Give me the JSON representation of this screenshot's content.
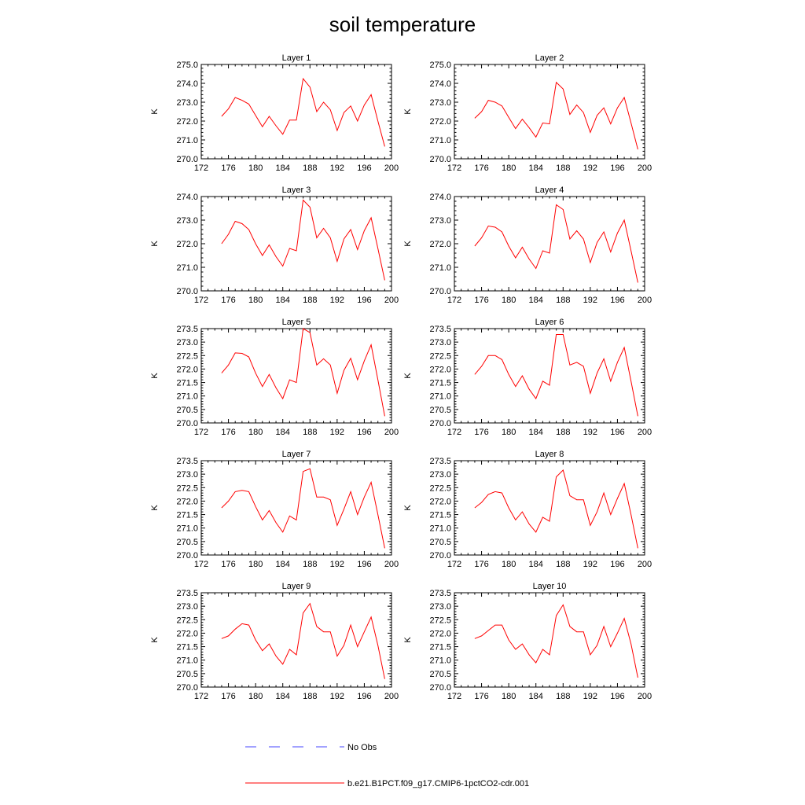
{
  "title": "soil temperature",
  "chart_data": [
    {
      "type": "line",
      "title": "Layer 1",
      "ylabel": "K",
      "xlim": [
        172,
        200
      ],
      "ylim": [
        270.0,
        275.0
      ],
      "xticks": [
        "172",
        "176",
        "180",
        "184",
        "188",
        "192",
        "196",
        "200"
      ],
      "yticks": [
        "270.0",
        "271.0",
        "272.0",
        "273.0",
        "274.0",
        "275.0"
      ],
      "x": [
        175,
        176,
        177,
        178,
        179,
        180,
        181,
        182,
        183,
        184,
        185,
        186,
        187,
        188,
        189,
        190,
        191,
        192,
        193,
        194,
        195,
        196,
        197,
        198,
        199
      ],
      "series": [
        {
          "name": "b.e21.B1PCT.f09_g17.CMIP6-1pctCO2-cdr.001",
          "color": "#ff0000",
          "values": [
            272.25,
            272.65,
            273.25,
            273.1,
            272.9,
            272.3,
            271.7,
            272.25,
            271.75,
            271.3,
            272.05,
            272.05,
            274.25,
            273.8,
            272.5,
            273.0,
            272.6,
            271.5,
            272.45,
            272.8,
            272.0,
            272.85,
            273.4,
            272.0,
            270.65
          ]
        }
      ]
    },
    {
      "type": "line",
      "title": "Layer 2",
      "ylabel": "K",
      "xlim": [
        172,
        200
      ],
      "ylim": [
        270.0,
        275.0
      ],
      "xticks": [
        "172",
        "176",
        "180",
        "184",
        "188",
        "192",
        "196",
        "200"
      ],
      "yticks": [
        "270.0",
        "271.0",
        "272.0",
        "273.0",
        "274.0",
        "275.0"
      ],
      "x": [
        175,
        176,
        177,
        178,
        179,
        180,
        181,
        182,
        183,
        184,
        185,
        186,
        187,
        188,
        189,
        190,
        191,
        192,
        193,
        194,
        195,
        196,
        197,
        198,
        199
      ],
      "series": [
        {
          "name": "b.e21.B1PCT.f09_g17.CMIP6-1pctCO2-cdr.001",
          "color": "#ff0000",
          "values": [
            272.15,
            272.5,
            273.1,
            273.0,
            272.8,
            272.2,
            271.6,
            272.1,
            271.65,
            271.15,
            271.9,
            271.85,
            274.05,
            273.7,
            272.35,
            272.85,
            272.45,
            271.4,
            272.3,
            272.7,
            271.85,
            272.7,
            273.25,
            271.9,
            270.5
          ]
        }
      ]
    },
    {
      "type": "line",
      "title": "Layer 3",
      "ylabel": "K",
      "xlim": [
        172,
        200
      ],
      "ylim": [
        270.0,
        274.0
      ],
      "xticks": [
        "172",
        "176",
        "180",
        "184",
        "188",
        "192",
        "196",
        "200"
      ],
      "yticks": [
        "270.0",
        "271.0",
        "272.0",
        "273.0",
        "274.0"
      ],
      "x": [
        175,
        176,
        177,
        178,
        179,
        180,
        181,
        182,
        183,
        184,
        185,
        186,
        187,
        188,
        189,
        190,
        191,
        192,
        193,
        194,
        195,
        196,
        197,
        198,
        199
      ],
      "series": [
        {
          "name": "b.e21.B1PCT.f09_g17.CMIP6-1pctCO2-cdr.001",
          "color": "#ff0000",
          "values": [
            272.0,
            272.4,
            272.95,
            272.85,
            272.6,
            272.0,
            271.5,
            271.95,
            271.45,
            271.05,
            271.8,
            271.7,
            273.85,
            273.55,
            272.25,
            272.65,
            272.25,
            271.25,
            272.2,
            272.6,
            271.75,
            272.55,
            273.1,
            271.8,
            270.45
          ]
        }
      ]
    },
    {
      "type": "line",
      "title": "Layer 4",
      "ylabel": "K",
      "xlim": [
        172,
        200
      ],
      "ylim": [
        270.0,
        274.0
      ],
      "xticks": [
        "172",
        "176",
        "180",
        "184",
        "188",
        "192",
        "196",
        "200"
      ],
      "yticks": [
        "270.0",
        "271.0",
        "272.0",
        "273.0",
        "274.0"
      ],
      "x": [
        175,
        176,
        177,
        178,
        179,
        180,
        181,
        182,
        183,
        184,
        185,
        186,
        187,
        188,
        189,
        190,
        191,
        192,
        193,
        194,
        195,
        196,
        197,
        198,
        199
      ],
      "series": [
        {
          "name": "b.e21.B1PCT.f09_g17.CMIP6-1pctCO2-cdr.001",
          "color": "#ff0000",
          "values": [
            271.9,
            272.25,
            272.75,
            272.7,
            272.5,
            271.9,
            271.4,
            271.85,
            271.35,
            270.95,
            271.7,
            271.6,
            273.65,
            273.45,
            272.2,
            272.55,
            272.2,
            271.2,
            272.05,
            272.5,
            271.65,
            272.45,
            273.0,
            271.7,
            270.35
          ]
        }
      ]
    },
    {
      "type": "line",
      "title": "Layer 5",
      "ylabel": "K",
      "xlim": [
        172,
        200
      ],
      "ylim": [
        270.0,
        273.5
      ],
      "xticks": [
        "172",
        "176",
        "180",
        "184",
        "188",
        "192",
        "196",
        "200"
      ],
      "yticks": [
        "270.0",
        "270.5",
        "271.0",
        "271.5",
        "272.0",
        "272.5",
        "273.0",
        "273.5"
      ],
      "x": [
        175,
        176,
        177,
        178,
        179,
        180,
        181,
        182,
        183,
        184,
        185,
        186,
        187,
        188,
        189,
        190,
        191,
        192,
        193,
        194,
        195,
        196,
        197,
        198,
        199
      ],
      "series": [
        {
          "name": "b.e21.B1PCT.f09_g17.CMIP6-1pctCO2-cdr.001",
          "color": "#ff0000",
          "values": [
            271.85,
            272.15,
            272.6,
            272.58,
            272.45,
            271.85,
            271.35,
            271.8,
            271.3,
            270.9,
            271.6,
            271.5,
            273.5,
            273.35,
            272.15,
            272.38,
            272.15,
            271.1,
            271.95,
            272.4,
            271.6,
            272.3,
            272.9,
            271.6,
            270.25
          ]
        }
      ]
    },
    {
      "type": "line",
      "title": "Layer 6",
      "ylabel": "K",
      "xlim": [
        172,
        200
      ],
      "ylim": [
        270.0,
        273.5
      ],
      "xticks": [
        "172",
        "176",
        "180",
        "184",
        "188",
        "192",
        "196",
        "200"
      ],
      "yticks": [
        "270.0",
        "270.5",
        "271.0",
        "271.5",
        "272.0",
        "272.5",
        "273.0",
        "273.5"
      ],
      "x": [
        175,
        176,
        177,
        178,
        179,
        180,
        181,
        182,
        183,
        184,
        185,
        186,
        187,
        188,
        189,
        190,
        191,
        192,
        193,
        194,
        195,
        196,
        197,
        198,
        199
      ],
      "series": [
        {
          "name": "b.e21.B1PCT.f09_g17.CMIP6-1pctCO2-cdr.001",
          "color": "#ff0000",
          "values": [
            271.8,
            272.1,
            272.5,
            272.5,
            272.35,
            271.8,
            271.35,
            271.75,
            271.25,
            270.9,
            271.55,
            271.4,
            273.28,
            273.28,
            272.15,
            272.25,
            272.1,
            271.1,
            271.85,
            272.38,
            271.55,
            272.25,
            272.8,
            271.55,
            270.25
          ]
        }
      ]
    },
    {
      "type": "line",
      "title": "Layer 7",
      "ylabel": "K",
      "xlim": [
        172,
        200
      ],
      "ylim": [
        270.0,
        273.5
      ],
      "xticks": [
        "172",
        "176",
        "180",
        "184",
        "188",
        "192",
        "196",
        "200"
      ],
      "yticks": [
        "270.0",
        "270.5",
        "271.0",
        "271.5",
        "272.0",
        "272.5",
        "273.0",
        "273.5"
      ],
      "x": [
        175,
        176,
        177,
        178,
        179,
        180,
        181,
        182,
        183,
        184,
        185,
        186,
        187,
        188,
        189,
        190,
        191,
        192,
        193,
        194,
        195,
        196,
        197,
        198,
        199
      ],
      "series": [
        {
          "name": "b.e21.B1PCT.f09_g17.CMIP6-1pctCO2-cdr.001",
          "color": "#ff0000",
          "values": [
            271.75,
            272.0,
            272.35,
            272.4,
            272.35,
            271.8,
            271.3,
            271.65,
            271.2,
            270.85,
            271.45,
            271.3,
            273.1,
            273.2,
            272.15,
            272.15,
            272.05,
            271.1,
            271.7,
            272.35,
            271.5,
            272.15,
            272.7,
            271.5,
            270.25
          ]
        }
      ]
    },
    {
      "type": "line",
      "title": "Layer 8",
      "ylabel": "K",
      "xlim": [
        172,
        200
      ],
      "ylim": [
        270.0,
        273.5
      ],
      "xticks": [
        "172",
        "176",
        "180",
        "184",
        "188",
        "192",
        "196",
        "200"
      ],
      "yticks": [
        "270.0",
        "270.5",
        "271.0",
        "271.5",
        "272.0",
        "272.5",
        "273.0",
        "273.5"
      ],
      "x": [
        175,
        176,
        177,
        178,
        179,
        180,
        181,
        182,
        183,
        184,
        185,
        186,
        187,
        188,
        189,
        190,
        191,
        192,
        193,
        194,
        195,
        196,
        197,
        198,
        199
      ],
      "series": [
        {
          "name": "b.e21.B1PCT.f09_g17.CMIP6-1pctCO2-cdr.001",
          "color": "#ff0000",
          "values": [
            271.75,
            271.95,
            272.25,
            272.35,
            272.3,
            271.75,
            271.3,
            271.6,
            271.15,
            270.85,
            271.4,
            271.25,
            272.9,
            273.15,
            272.2,
            272.05,
            272.05,
            271.1,
            271.6,
            272.3,
            271.5,
            272.1,
            272.65,
            271.5,
            270.25
          ]
        }
      ]
    },
    {
      "type": "line",
      "title": "Layer 9",
      "ylabel": "K",
      "xlim": [
        172,
        200
      ],
      "ylim": [
        270.0,
        273.5
      ],
      "xticks": [
        "172",
        "176",
        "180",
        "184",
        "188",
        "192",
        "196",
        "200"
      ],
      "yticks": [
        "270.0",
        "270.5",
        "271.0",
        "271.5",
        "272.0",
        "272.5",
        "273.0",
        "273.5"
      ],
      "x": [
        175,
        176,
        177,
        178,
        179,
        180,
        181,
        182,
        183,
        184,
        185,
        186,
        187,
        188,
        189,
        190,
        191,
        192,
        193,
        194,
        195,
        196,
        197,
        198,
        199
      ],
      "series": [
        {
          "name": "b.e21.B1PCT.f09_g17.CMIP6-1pctCO2-cdr.001",
          "color": "#ff0000",
          "values": [
            271.8,
            271.9,
            272.15,
            272.35,
            272.3,
            271.75,
            271.35,
            271.6,
            271.15,
            270.85,
            271.4,
            271.2,
            272.75,
            273.1,
            272.25,
            272.05,
            272.05,
            271.15,
            271.55,
            272.3,
            271.5,
            272.05,
            272.6,
            271.55,
            270.3
          ]
        }
      ]
    },
    {
      "type": "line",
      "title": "Layer 10",
      "ylabel": "K",
      "xlim": [
        172,
        200
      ],
      "ylim": [
        270.0,
        273.5
      ],
      "xticks": [
        "172",
        "176",
        "180",
        "184",
        "188",
        "192",
        "196",
        "200"
      ],
      "yticks": [
        "270.0",
        "270.5",
        "271.0",
        "271.5",
        "272.0",
        "272.5",
        "273.0",
        "273.5"
      ],
      "x": [
        175,
        176,
        177,
        178,
        179,
        180,
        181,
        182,
        183,
        184,
        185,
        186,
        187,
        188,
        189,
        190,
        191,
        192,
        193,
        194,
        195,
        196,
        197,
        198,
        199
      ],
      "series": [
        {
          "name": "b.e21.B1PCT.f09_g17.CMIP6-1pctCO2-cdr.001",
          "color": "#ff0000",
          "values": [
            271.8,
            271.9,
            272.1,
            272.3,
            272.3,
            271.75,
            271.4,
            271.6,
            271.2,
            270.9,
            271.4,
            271.2,
            272.65,
            273.05,
            272.25,
            272.05,
            272.05,
            271.2,
            271.55,
            272.25,
            271.5,
            272.0,
            272.55,
            271.6,
            270.35
          ]
        }
      ]
    }
  ],
  "legend": [
    {
      "label": "No Obs",
      "color": "#4444ff",
      "style": "dashed"
    },
    {
      "label": "b.e21.B1PCT.f09_g17.CMIP6-1pctCO2-cdr.001",
      "color": "#ff0000",
      "style": "solid"
    }
  ]
}
